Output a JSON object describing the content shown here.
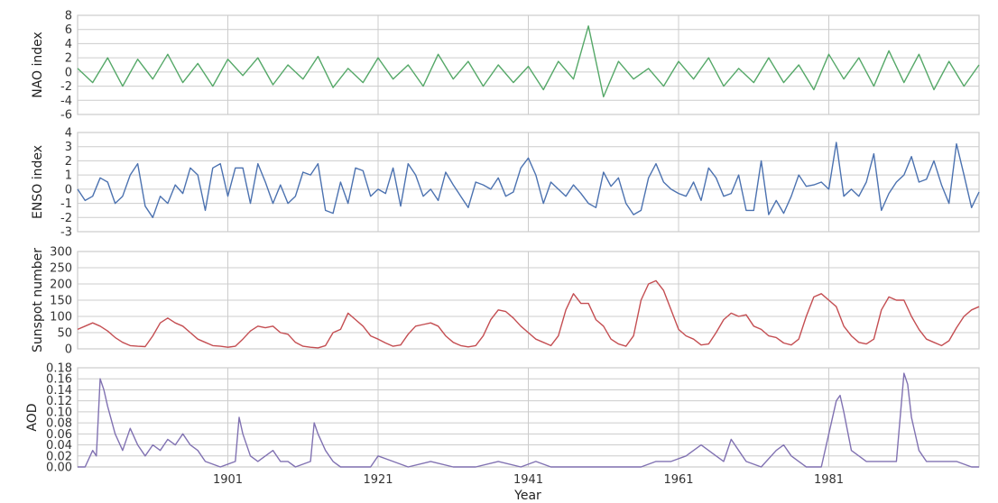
{
  "chart_data": [
    {
      "type": "line",
      "id": "nao",
      "ylabel": "NAO index",
      "xlim": [
        1881,
        2001
      ],
      "ylim": [
        -6,
        8
      ],
      "yticks": [
        -6,
        -4,
        -2,
        0,
        2,
        4,
        6,
        8
      ],
      "grid": true,
      "color": "#55a868",
      "x": [
        1881,
        1883,
        1885,
        1887,
        1889,
        1891,
        1893,
        1895,
        1897,
        1899,
        1901,
        1903,
        1905,
        1907,
        1909,
        1911,
        1913,
        1915,
        1917,
        1919,
        1921,
        1923,
        1925,
        1927,
        1929,
        1931,
        1933,
        1935,
        1937,
        1939,
        1941,
        1943,
        1945,
        1947,
        1949,
        1951,
        1953,
        1955,
        1957,
        1959,
        1961,
        1963,
        1965,
        1967,
        1969,
        1971,
        1973,
        1975,
        1977,
        1979,
        1981,
        1983,
        1985,
        1987,
        1989,
        1991,
        1993,
        1995,
        1997,
        1999,
        2001
      ],
      "y": [
        0.5,
        -1.5,
        2,
        -2,
        1.8,
        -1,
        2.5,
        -1.5,
        1.2,
        -2,
        1.8,
        -0.5,
        2,
        -1.8,
        1,
        -1,
        2.2,
        -2.2,
        0.5,
        -1.5,
        2,
        -1,
        1,
        -2,
        2.5,
        -1,
        1.5,
        -2,
        1,
        -1.5,
        0.8,
        -2.5,
        1.5,
        -1,
        6.5,
        -3.5,
        1.5,
        -1,
        0.5,
        -2,
        1.5,
        -1,
        2,
        -2,
        0.5,
        -1.5,
        2,
        -1.5,
        1,
        -2.5,
        2.5,
        -1,
        2,
        -2,
        3,
        -1.5,
        2.5,
        -2.5,
        1.5,
        -2,
        1
      ],
      "xticklabels": [
        "1901",
        "1921",
        "1941",
        "1961",
        "1981"
      ],
      "xlabel": "Year"
    },
    {
      "type": "line",
      "id": "enso",
      "ylabel": "ENSO index",
      "xlim": [
        1881,
        2001
      ],
      "ylim": [
        -3,
        4
      ],
      "yticks": [
        -3,
        -2,
        -1,
        0,
        1,
        2,
        3,
        4
      ],
      "grid": true,
      "color": "#4c72b0",
      "x": [
        1881,
        1882,
        1883,
        1884,
        1885,
        1886,
        1887,
        1888,
        1889,
        1890,
        1891,
        1892,
        1893,
        1894,
        1895,
        1896,
        1897,
        1898,
        1899,
        1900,
        1901,
        1902,
        1903,
        1904,
        1905,
        1906,
        1907,
        1908,
        1909,
        1910,
        1911,
        1912,
        1913,
        1914,
        1915,
        1916,
        1917,
        1918,
        1919,
        1920,
        1921,
        1922,
        1923,
        1924,
        1925,
        1926,
        1927,
        1928,
        1929,
        1930,
        1931,
        1932,
        1933,
        1934,
        1935,
        1936,
        1937,
        1938,
        1939,
        1940,
        1941,
        1942,
        1943,
        1944,
        1945,
        1946,
        1947,
        1948,
        1949,
        1950,
        1951,
        1952,
        1953,
        1954,
        1955,
        1956,
        1957,
        1958,
        1959,
        1960,
        1961,
        1962,
        1963,
        1964,
        1965,
        1966,
        1967,
        1968,
        1969,
        1970,
        1971,
        1972,
        1973,
        1974,
        1975,
        1976,
        1977,
        1978,
        1979,
        1980,
        1981,
        1982,
        1983,
        1984,
        1985,
        1986,
        1987,
        1988,
        1989,
        1990,
        1991,
        1992,
        1993,
        1994,
        1995,
        1996,
        1997,
        1998,
        1999,
        2000,
        2001
      ],
      "y": [
        0,
        -0.8,
        -0.5,
        0.8,
        0.5,
        -1,
        -0.5,
        1,
        1.8,
        -1.2,
        -2,
        -0.5,
        -1,
        0.3,
        -0.3,
        1.5,
        1,
        -1.5,
        1.5,
        1.8,
        -0.5,
        1.5,
        1.5,
        -1,
        1.8,
        0.5,
        -1,
        0.3,
        -1,
        -0.5,
        1.2,
        1,
        1.8,
        -1.5,
        -1.7,
        0.5,
        -1,
        1.5,
        1.3,
        -0.5,
        0,
        -0.3,
        1.5,
        -1.2,
        1.8,
        1,
        -0.5,
        0,
        -0.8,
        1.2,
        0.3,
        -0.5,
        -1.3,
        0.5,
        0.3,
        0,
        0.8,
        -0.5,
        -0.2,
        1.5,
        2.2,
        1,
        -1,
        0.5,
        0,
        -0.5,
        0.3,
        -0.3,
        -1,
        -1.3,
        1.2,
        0.2,
        0.8,
        -1,
        -1.8,
        -1.5,
        0.8,
        1.8,
        0.5,
        0,
        -0.3,
        -0.5,
        0.5,
        -0.8,
        1.5,
        0.8,
        -0.5,
        -0.3,
        1,
        -1.5,
        -1.5,
        2,
        -1.8,
        -0.8,
        -1.7,
        -0.5,
        1,
        0.2,
        0.3,
        0.5,
        0,
        3.3,
        -0.5,
        0,
        -0.5,
        0.5,
        2.5,
        -1.5,
        -0.3,
        0.5,
        1,
        2.3,
        0.5,
        0.7,
        2,
        0.3,
        -1,
        3.2,
        1,
        -1.3,
        -0.2
      ]
    },
    {
      "type": "line",
      "id": "sunspot",
      "ylabel": "Sunspot number",
      "xlim": [
        1881,
        2001
      ],
      "ylim": [
        0,
        300
      ],
      "yticks": [
        0,
        50,
        100,
        150,
        200,
        250,
        300
      ],
      "grid": true,
      "color": "#c44e52",
      "x": [
        1881,
        1882,
        1883,
        1884,
        1885,
        1886,
        1887,
        1888,
        1889,
        1890,
        1891,
        1892,
        1893,
        1894,
        1895,
        1896,
        1897,
        1898,
        1899,
        1900,
        1901,
        1902,
        1903,
        1904,
        1905,
        1906,
        1907,
        1908,
        1909,
        1910,
        1911,
        1912,
        1913,
        1914,
        1915,
        1916,
        1917,
        1918,
        1919,
        1920,
        1921,
        1922,
        1923,
        1924,
        1925,
        1926,
        1927,
        1928,
        1929,
        1930,
        1931,
        1932,
        1933,
        1934,
        1935,
        1936,
        1937,
        1938,
        1939,
        1940,
        1941,
        1942,
        1943,
        1944,
        1945,
        1946,
        1947,
        1948,
        1949,
        1950,
        1951,
        1952,
        1953,
        1954,
        1955,
        1956,
        1957,
        1958,
        1959,
        1960,
        1961,
        1962,
        1963,
        1964,
        1965,
        1966,
        1967,
        1968,
        1969,
        1970,
        1971,
        1972,
        1973,
        1974,
        1975,
        1976,
        1977,
        1978,
        1979,
        1980,
        1981,
        1982,
        1983,
        1984,
        1985,
        1986,
        1987,
        1988,
        1989,
        1990,
        1991,
        1992,
        1993,
        1994,
        1995,
        1996,
        1997,
        1998,
        1999,
        2000,
        2001
      ],
      "y": [
        60,
        70,
        80,
        70,
        55,
        35,
        20,
        10,
        8,
        7,
        40,
        80,
        95,
        80,
        70,
        50,
        30,
        20,
        10,
        8,
        5,
        8,
        30,
        55,
        70,
        65,
        70,
        50,
        45,
        20,
        8,
        5,
        3,
        10,
        50,
        60,
        110,
        90,
        70,
        40,
        30,
        18,
        8,
        12,
        45,
        70,
        75,
        80,
        70,
        40,
        20,
        10,
        6,
        10,
        40,
        90,
        120,
        115,
        95,
        70,
        50,
        30,
        20,
        10,
        40,
        120,
        170,
        140,
        140,
        90,
        70,
        30,
        15,
        8,
        40,
        150,
        200,
        210,
        180,
        120,
        60,
        40,
        30,
        12,
        15,
        50,
        90,
        110,
        100,
        105,
        70,
        60,
        40,
        35,
        18,
        12,
        30,
        100,
        160,
        170,
        150,
        130,
        70,
        40,
        20,
        15,
        30,
        120,
        160,
        150,
        150,
        100,
        60,
        30,
        20,
        10,
        25,
        65,
        100,
        120,
        130
      ]
    },
    {
      "type": "line",
      "id": "aod",
      "ylabel": "AOD",
      "xlim": [
        1881,
        2001
      ],
      "ylim": [
        0,
        0.18
      ],
      "yticks": [
        0.0,
        0.02,
        0.04,
        0.06,
        0.08,
        0.1,
        0.12,
        0.14,
        0.16,
        0.18
      ],
      "ytick_labels": [
        "0.00",
        "0.02",
        "0.04",
        "0.06",
        "0.08",
        "0.10",
        "0.12",
        "0.14",
        "0.16",
        "0.18"
      ],
      "grid": true,
      "color": "#8172b2",
      "x": [
        1881,
        1882,
        1883,
        1883.5,
        1884,
        1884.5,
        1885,
        1886,
        1887,
        1888,
        1889,
        1890,
        1891,
        1892,
        1893,
        1894,
        1895,
        1896,
        1897,
        1898,
        1900,
        1902,
        1902.5,
        1903,
        1904,
        1905,
        1906,
        1907,
        1908,
        1909,
        1910,
        1912,
        1912.5,
        1913,
        1914,
        1915,
        1916,
        1918,
        1920,
        1921,
        1923,
        1925,
        1928,
        1931,
        1934,
        1937,
        1940,
        1942,
        1944,
        1947,
        1950,
        1953,
        1956,
        1958,
        1960,
        1962,
        1963,
        1964,
        1965,
        1966,
        1967,
        1968,
        1969,
        1970,
        1972,
        1974,
        1975,
        1976,
        1977,
        1978,
        1980,
        1982,
        1982.5,
        1983,
        1984,
        1986,
        1988,
        1990,
        1991,
        1991.5,
        1992,
        1993,
        1994,
        1996,
        1998,
        2000,
        2001
      ],
      "y": [
        0,
        0,
        0.03,
        0.02,
        0.16,
        0.14,
        0.11,
        0.06,
        0.03,
        0.07,
        0.04,
        0.02,
        0.04,
        0.03,
        0.05,
        0.04,
        0.06,
        0.04,
        0.03,
        0.01,
        0,
        0.01,
        0.09,
        0.06,
        0.02,
        0.01,
        0.02,
        0.03,
        0.01,
        0.01,
        0,
        0.01,
        0.08,
        0.06,
        0.03,
        0.01,
        0,
        0,
        0,
        0.02,
        0.01,
        0,
        0.01,
        0,
        0,
        0.01,
        0,
        0.01,
        0,
        0,
        0,
        0,
        0,
        0.01,
        0.01,
        0.02,
        0.03,
        0.04,
        0.03,
        0.02,
        0.01,
        0.05,
        0.03,
        0.01,
        0,
        0.03,
        0.04,
        0.02,
        0.01,
        0,
        0,
        0.12,
        0.13,
        0.1,
        0.03,
        0.01,
        0.01,
        0.01,
        0.17,
        0.15,
        0.09,
        0.03,
        0.01,
        0.01,
        0.01,
        0,
        0
      ],
      "xlabel": "Year"
    }
  ],
  "xaxis": {
    "ticks": [
      1901,
      1921,
      1941,
      1961,
      1981
    ],
    "labels": [
      "1901",
      "1921",
      "1941",
      "1961",
      "1981"
    ],
    "xlabel": "Year"
  }
}
